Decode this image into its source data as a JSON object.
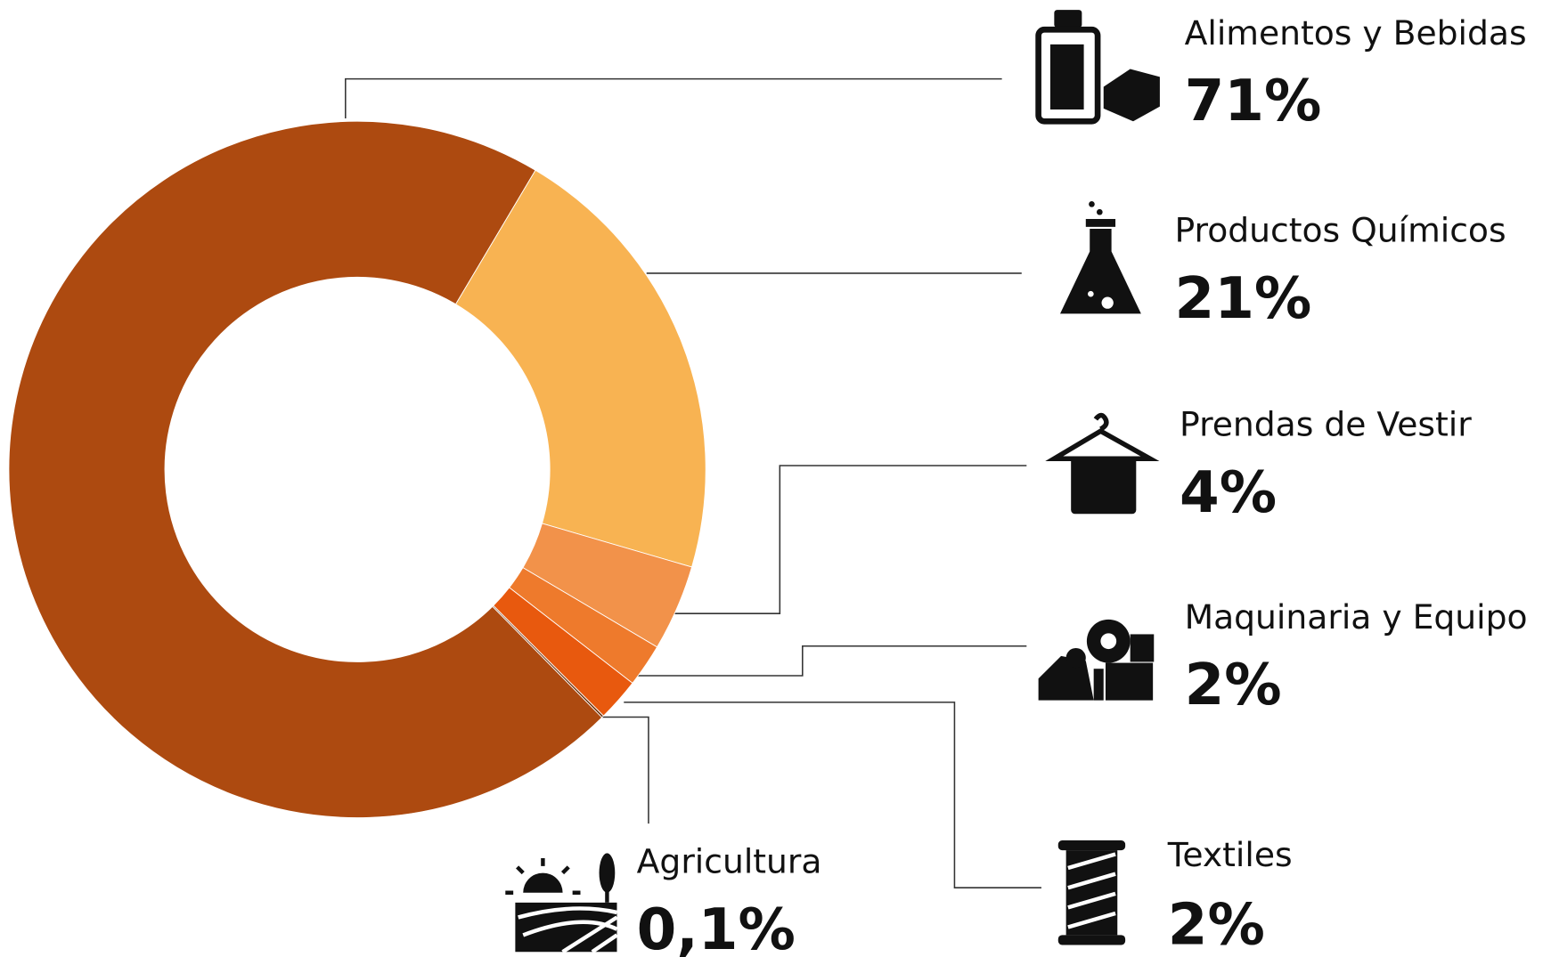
{
  "chart_data": {
    "type": "donut",
    "categories": [
      "Alimentos y Bebidas",
      "Productos Químicos",
      "Prendas de Vestir",
      "Maquinaria y Equipo",
      "Textiles",
      "Agricultura"
    ],
    "values": [
      71,
      21,
      4,
      2,
      2,
      0.1
    ],
    "value_labels": [
      "71%",
      "21%",
      "4%",
      "2%",
      "2%",
      "0,1%"
    ],
    "colors": [
      "#ad4a10",
      "#f8b352",
      "#f2924a",
      "#ee7a2c",
      "#e8590e",
      "#6b2e08"
    ]
  }
}
